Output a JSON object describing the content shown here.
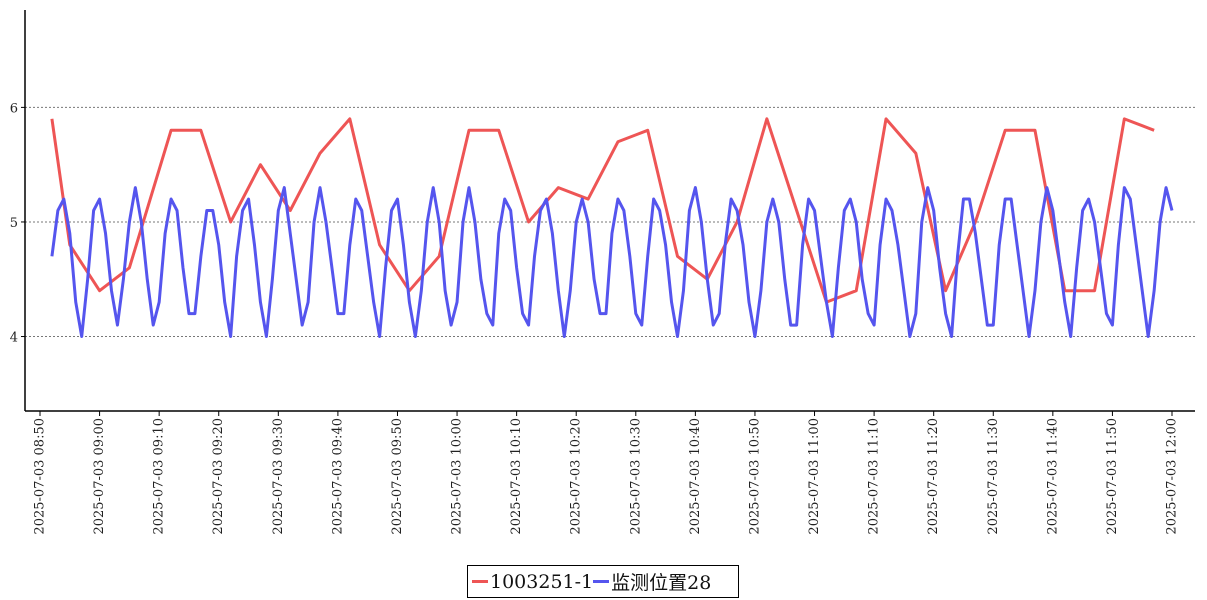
{
  "chart_data": {
    "type": "line",
    "title": "",
    "xlabel": "",
    "ylabel": "",
    "ylim": [
      3.35,
      6.85
    ],
    "y_ticks": [
      4,
      5,
      6
    ],
    "grid": "horizontal dotted",
    "legend_position": "bottom-center",
    "x_ticks": [
      "2025-07-03 08:50",
      "2025-07-03 09:00",
      "2025-07-03 09:10",
      "2025-07-03 09:20",
      "2025-07-03 09:30",
      "2025-07-03 09:40",
      "2025-07-03 09:50",
      "2025-07-03 10:00",
      "2025-07-03 10:10",
      "2025-07-03 10:20",
      "2025-07-03 10:30",
      "2025-07-03 10:40",
      "2025-07-03 10:50",
      "2025-07-03 11:00",
      "2025-07-03 11:10",
      "2025-07-03 11:20",
      "2025-07-03 11:30",
      "2025-07-03 11:40",
      "2025-07-03 11:50",
      "2025-07-03 12:00"
    ],
    "series": [
      {
        "name": "1003251-1",
        "color": "#ee5555",
        "points": [
          [
            "2025-07-03 08:52",
            5.9
          ],
          [
            "2025-07-03 08:55",
            4.8
          ],
          [
            "2025-07-03 09:00",
            4.4
          ],
          [
            "2025-07-03 09:05",
            4.6
          ],
          [
            "2025-07-03 09:12",
            5.8
          ],
          [
            "2025-07-03 09:17",
            5.8
          ],
          [
            "2025-07-03 09:22",
            5.0
          ],
          [
            "2025-07-03 09:27",
            5.5
          ],
          [
            "2025-07-03 09:32",
            5.1
          ],
          [
            "2025-07-03 09:37",
            5.6
          ],
          [
            "2025-07-03 09:42",
            5.9
          ],
          [
            "2025-07-03 09:47",
            4.8
          ],
          [
            "2025-07-03 09:52",
            4.4
          ],
          [
            "2025-07-03 09:57",
            4.7
          ],
          [
            "2025-07-03 10:02",
            5.8
          ],
          [
            "2025-07-03 10:07",
            5.8
          ],
          [
            "2025-07-03 10:12",
            5.0
          ],
          [
            "2025-07-03 10:17",
            5.3
          ],
          [
            "2025-07-03 10:22",
            5.2
          ],
          [
            "2025-07-03 10:27",
            5.7
          ],
          [
            "2025-07-03 10:32",
            5.8
          ],
          [
            "2025-07-03 10:37",
            4.7
          ],
          [
            "2025-07-03 10:42",
            4.5
          ],
          [
            "2025-07-03 10:47",
            5.0
          ],
          [
            "2025-07-03 10:52",
            5.9
          ],
          [
            "2025-07-03 10:57",
            5.1
          ],
          [
            "2025-07-03 11:02",
            4.3
          ],
          [
            "2025-07-03 11:07",
            4.4
          ],
          [
            "2025-07-03 11:12",
            5.9
          ],
          [
            "2025-07-03 11:17",
            5.6
          ],
          [
            "2025-07-03 11:22",
            4.4
          ],
          [
            "2025-07-03 11:27",
            5.0
          ],
          [
            "2025-07-03 11:32",
            5.8
          ],
          [
            "2025-07-03 11:37",
            5.8
          ],
          [
            "2025-07-03 11:42",
            4.4
          ],
          [
            "2025-07-03 11:47",
            4.4
          ],
          [
            "2025-07-03 11:52",
            5.9
          ],
          [
            "2025-07-03 11:57",
            5.8
          ]
        ]
      },
      {
        "name": "监测位置28",
        "color": "#5555ee",
        "points": [
          [
            "2025-07-03 08:52",
            4.7
          ],
          [
            "2025-07-03 08:53",
            5.1
          ],
          [
            "2025-07-03 08:54",
            5.2
          ],
          [
            "2025-07-03 08:55",
            4.9
          ],
          [
            "2025-07-03 08:56",
            4.3
          ],
          [
            "2025-07-03 08:57",
            4.0
          ],
          [
            "2025-07-03 08:58",
            4.5
          ],
          [
            "2025-07-03 08:59",
            5.1
          ],
          [
            "2025-07-03 09:00",
            5.2
          ],
          [
            "2025-07-03 09:01",
            4.9
          ],
          [
            "2025-07-03 09:02",
            4.4
          ],
          [
            "2025-07-03 09:03",
            4.1
          ],
          [
            "2025-07-03 09:04",
            4.5
          ],
          [
            "2025-07-03 09:05",
            5.0
          ],
          [
            "2025-07-03 09:06",
            5.3
          ],
          [
            "2025-07-03 09:07",
            5.0
          ],
          [
            "2025-07-03 09:08",
            4.5
          ],
          [
            "2025-07-03 09:09",
            4.1
          ],
          [
            "2025-07-03 09:10",
            4.3
          ],
          [
            "2025-07-03 09:11",
            4.9
          ],
          [
            "2025-07-03 09:12",
            5.2
          ],
          [
            "2025-07-03 09:13",
            5.1
          ],
          [
            "2025-07-03 09:14",
            4.6
          ],
          [
            "2025-07-03 09:15",
            4.2
          ],
          [
            "2025-07-03 09:16",
            4.2
          ],
          [
            "2025-07-03 09:17",
            4.7
          ],
          [
            "2025-07-03 09:18",
            5.1
          ],
          [
            "2025-07-03 09:19",
            5.1
          ],
          [
            "2025-07-03 09:20",
            4.8
          ],
          [
            "2025-07-03 09:21",
            4.3
          ],
          [
            "2025-07-03 09:22",
            4.0
          ],
          [
            "2025-07-03 09:23",
            4.7
          ],
          [
            "2025-07-03 09:24",
            5.1
          ],
          [
            "2025-07-03 09:25",
            5.2
          ],
          [
            "2025-07-03 09:26",
            4.8
          ],
          [
            "2025-07-03 09:27",
            4.3
          ],
          [
            "2025-07-03 09:28",
            4.0
          ],
          [
            "2025-07-03 09:29",
            4.5
          ],
          [
            "2025-07-03 09:30",
            5.1
          ],
          [
            "2025-07-03 09:31",
            5.3
          ],
          [
            "2025-07-03 09:32",
            4.9
          ],
          [
            "2025-07-03 09:33",
            4.5
          ],
          [
            "2025-07-03 09:34",
            4.1
          ],
          [
            "2025-07-03 09:35",
            4.3
          ],
          [
            "2025-07-03 09:36",
            5.0
          ],
          [
            "2025-07-03 09:37",
            5.3
          ],
          [
            "2025-07-03 09:38",
            5.0
          ],
          [
            "2025-07-03 09:39",
            4.6
          ],
          [
            "2025-07-03 09:40",
            4.2
          ],
          [
            "2025-07-03 09:41",
            4.2
          ],
          [
            "2025-07-03 09:42",
            4.8
          ],
          [
            "2025-07-03 09:43",
            5.2
          ],
          [
            "2025-07-03 09:44",
            5.1
          ],
          [
            "2025-07-03 09:45",
            4.7
          ],
          [
            "2025-07-03 09:46",
            4.3
          ],
          [
            "2025-07-03 09:47",
            4.0
          ],
          [
            "2025-07-03 09:48",
            4.6
          ],
          [
            "2025-07-03 09:49",
            5.1
          ],
          [
            "2025-07-03 09:50",
            5.2
          ],
          [
            "2025-07-03 09:51",
            4.8
          ],
          [
            "2025-07-03 09:52",
            4.3
          ],
          [
            "2025-07-03 09:53",
            4.0
          ],
          [
            "2025-07-03 09:54",
            4.4
          ],
          [
            "2025-07-03 09:55",
            5.0
          ],
          [
            "2025-07-03 09:56",
            5.3
          ],
          [
            "2025-07-03 09:57",
            5.0
          ],
          [
            "2025-07-03 09:58",
            4.4
          ],
          [
            "2025-07-03 09:59",
            4.1
          ],
          [
            "2025-07-03 10:00",
            4.3
          ],
          [
            "2025-07-03 10:01",
            5.0
          ],
          [
            "2025-07-03 10:02",
            5.3
          ],
          [
            "2025-07-03 10:03",
            5.0
          ],
          [
            "2025-07-03 10:04",
            4.5
          ],
          [
            "2025-07-03 10:05",
            4.2
          ],
          [
            "2025-07-03 10:06",
            4.1
          ],
          [
            "2025-07-03 10:07",
            4.9
          ],
          [
            "2025-07-03 10:08",
            5.2
          ],
          [
            "2025-07-03 10:09",
            5.1
          ],
          [
            "2025-07-03 10:10",
            4.6
          ],
          [
            "2025-07-03 10:11",
            4.2
          ],
          [
            "2025-07-03 10:12",
            4.1
          ],
          [
            "2025-07-03 10:13",
            4.7
          ],
          [
            "2025-07-03 10:14",
            5.1
          ],
          [
            "2025-07-03 10:15",
            5.2
          ],
          [
            "2025-07-03 10:16",
            4.9
          ],
          [
            "2025-07-03 10:17",
            4.4
          ],
          [
            "2025-07-03 10:18",
            4.0
          ],
          [
            "2025-07-03 10:19",
            4.4
          ],
          [
            "2025-07-03 10:20",
            5.0
          ],
          [
            "2025-07-03 10:21",
            5.2
          ],
          [
            "2025-07-03 10:22",
            5.0
          ],
          [
            "2025-07-03 10:23",
            4.5
          ],
          [
            "2025-07-03 10:24",
            4.2
          ],
          [
            "2025-07-03 10:25",
            4.2
          ],
          [
            "2025-07-03 10:26",
            4.9
          ],
          [
            "2025-07-03 10:27",
            5.2
          ],
          [
            "2025-07-03 10:28",
            5.1
          ],
          [
            "2025-07-03 10:29",
            4.7
          ],
          [
            "2025-07-03 10:30",
            4.2
          ],
          [
            "2025-07-03 10:31",
            4.1
          ],
          [
            "2025-07-03 10:32",
            4.7
          ],
          [
            "2025-07-03 10:33",
            5.2
          ],
          [
            "2025-07-03 10:34",
            5.1
          ],
          [
            "2025-07-03 10:35",
            4.8
          ],
          [
            "2025-07-03 10:36",
            4.3
          ],
          [
            "2025-07-03 10:37",
            4.0
          ],
          [
            "2025-07-03 10:38",
            4.4
          ],
          [
            "2025-07-03 10:39",
            5.1
          ],
          [
            "2025-07-03 10:40",
            5.3
          ],
          [
            "2025-07-03 10:41",
            5.0
          ],
          [
            "2025-07-03 10:42",
            4.5
          ],
          [
            "2025-07-03 10:43",
            4.1
          ],
          [
            "2025-07-03 10:44",
            4.2
          ],
          [
            "2025-07-03 10:45",
            4.8
          ],
          [
            "2025-07-03 10:46",
            5.2
          ],
          [
            "2025-07-03 10:47",
            5.1
          ],
          [
            "2025-07-03 10:48",
            4.8
          ],
          [
            "2025-07-03 10:49",
            4.3
          ],
          [
            "2025-07-03 10:50",
            4.0
          ],
          [
            "2025-07-03 10:51",
            4.4
          ],
          [
            "2025-07-03 10:52",
            5.0
          ],
          [
            "2025-07-03 10:53",
            5.2
          ],
          [
            "2025-07-03 10:54",
            5.0
          ],
          [
            "2025-07-03 10:55",
            4.5
          ],
          [
            "2025-07-03 10:56",
            4.1
          ],
          [
            "2025-07-03 10:57",
            4.1
          ],
          [
            "2025-07-03 10:58",
            4.8
          ],
          [
            "2025-07-03 10:59",
            5.2
          ],
          [
            "2025-07-03 11:00",
            5.1
          ],
          [
            "2025-07-03 11:01",
            4.7
          ],
          [
            "2025-07-03 11:02",
            4.3
          ],
          [
            "2025-07-03 11:03",
            4.0
          ],
          [
            "2025-07-03 11:04",
            4.6
          ],
          [
            "2025-07-03 11:05",
            5.1
          ],
          [
            "2025-07-03 11:06",
            5.2
          ],
          [
            "2025-07-03 11:07",
            5.0
          ],
          [
            "2025-07-03 11:08",
            4.5
          ],
          [
            "2025-07-03 11:09",
            4.2
          ],
          [
            "2025-07-03 11:10",
            4.1
          ],
          [
            "2025-07-03 11:11",
            4.8
          ],
          [
            "2025-07-03 11:12",
            5.2
          ],
          [
            "2025-07-03 11:13",
            5.1
          ],
          [
            "2025-07-03 11:14",
            4.8
          ],
          [
            "2025-07-03 11:15",
            4.4
          ],
          [
            "2025-07-03 11:16",
            4.0
          ],
          [
            "2025-07-03 11:17",
            4.2
          ],
          [
            "2025-07-03 11:18",
            5.0
          ],
          [
            "2025-07-03 11:19",
            5.3
          ],
          [
            "2025-07-03 11:20",
            5.1
          ],
          [
            "2025-07-03 11:21",
            4.6
          ],
          [
            "2025-07-03 11:22",
            4.2
          ],
          [
            "2025-07-03 11:23",
            4.0
          ],
          [
            "2025-07-03 11:24",
            4.7
          ],
          [
            "2025-07-03 11:25",
            5.2
          ],
          [
            "2025-07-03 11:26",
            5.2
          ],
          [
            "2025-07-03 11:27",
            4.9
          ],
          [
            "2025-07-03 11:28",
            4.5
          ],
          [
            "2025-07-03 11:29",
            4.1
          ],
          [
            "2025-07-03 11:30",
            4.1
          ],
          [
            "2025-07-03 11:31",
            4.8
          ],
          [
            "2025-07-03 11:32",
            5.2
          ],
          [
            "2025-07-03 11:33",
            5.2
          ],
          [
            "2025-07-03 11:34",
            4.8
          ],
          [
            "2025-07-03 11:35",
            4.4
          ],
          [
            "2025-07-03 11:36",
            4.0
          ],
          [
            "2025-07-03 11:37",
            4.4
          ],
          [
            "2025-07-03 11:38",
            5.0
          ],
          [
            "2025-07-03 11:39",
            5.3
          ],
          [
            "2025-07-03 11:40",
            5.1
          ],
          [
            "2025-07-03 11:41",
            4.7
          ],
          [
            "2025-07-03 11:42",
            4.3
          ],
          [
            "2025-07-03 11:43",
            4.0
          ],
          [
            "2025-07-03 11:44",
            4.6
          ],
          [
            "2025-07-03 11:45",
            5.1
          ],
          [
            "2025-07-03 11:46",
            5.2
          ],
          [
            "2025-07-03 11:47",
            5.0
          ],
          [
            "2025-07-03 11:48",
            4.6
          ],
          [
            "2025-07-03 11:49",
            4.2
          ],
          [
            "2025-07-03 11:50",
            4.1
          ],
          [
            "2025-07-03 11:51",
            4.8
          ],
          [
            "2025-07-03 11:52",
            5.3
          ],
          [
            "2025-07-03 11:53",
            5.2
          ],
          [
            "2025-07-03 11:54",
            4.8
          ],
          [
            "2025-07-03 11:55",
            4.4
          ],
          [
            "2025-07-03 11:56",
            4.0
          ],
          [
            "2025-07-03 11:57",
            4.4
          ],
          [
            "2025-07-03 11:58",
            5.0
          ],
          [
            "2025-07-03 11:59",
            5.3
          ],
          [
            "2025-07-03 12:00",
            5.1
          ]
        ]
      }
    ]
  }
}
